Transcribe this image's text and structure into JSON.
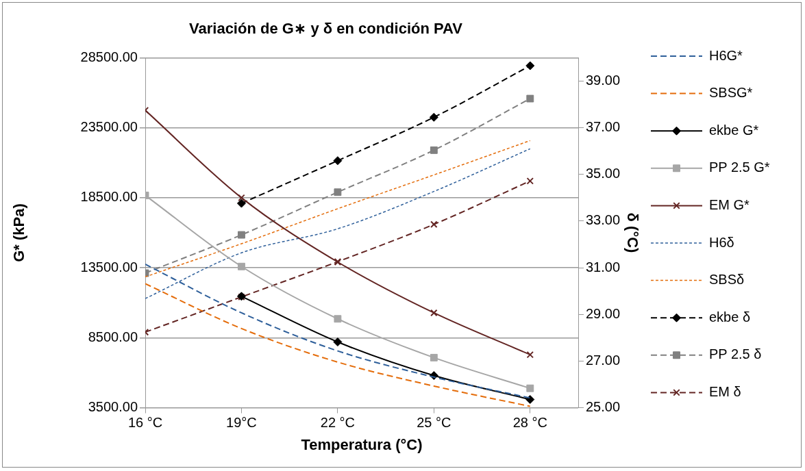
{
  "chart_data": {
    "type": "line",
    "title": "Variación de G∗ y δ en condición PAV",
    "xlabel": "Temperatura (°C)",
    "ylabel": "G* (kPa)",
    "y2label": "δ (°C)",
    "categories": [
      "16 °C",
      "19°C",
      "22 °C",
      "25 °C",
      "28 °C"
    ],
    "ylim": [
      3500,
      28500
    ],
    "yticks": [
      {
        "value": 3500,
        "label": "3500.00"
      },
      {
        "value": 8500,
        "label": "8500.00"
      },
      {
        "value": 13500,
        "label": "13500.00"
      },
      {
        "value": 18500,
        "label": "18500.00"
      },
      {
        "value": 23500,
        "label": "23500.00"
      },
      {
        "value": 28500,
        "label": "28500.00"
      }
    ],
    "y2lim": [
      25,
      40
    ],
    "y2ticks": [
      {
        "value": 25,
        "label": "25.00"
      },
      {
        "value": 27,
        "label": "27.00"
      },
      {
        "value": 29,
        "label": "29.00"
      },
      {
        "value": 31,
        "label": "31.00"
      },
      {
        "value": 33,
        "label": "33.00"
      },
      {
        "value": 35,
        "label": "35.00"
      },
      {
        "value": 37,
        "label": "37.00"
      },
      {
        "value": 39,
        "label": "39.00"
      }
    ],
    "grid": "y",
    "legend": "right",
    "series": [
      {
        "name": "H6G*",
        "color": "#2e5f9a",
        "line_style": "dashed",
        "marker": "none",
        "values": [
          13750,
          10280,
          7560,
          5690,
          4200
        ]
      },
      {
        "name": "SBSG*",
        "color": "#e46c0a",
        "line_style": "dashed",
        "marker": "none",
        "values": [
          12360,
          9160,
          6760,
          5050,
          3600
        ]
      },
      {
        "name": "ekbe G*",
        "color": "#000000",
        "line_style": "solid",
        "marker": "diamond",
        "values": [
          null,
          11460,
          8200,
          5800,
          4090
        ]
      },
      {
        "name": "PP 2.5 G*",
        "color": "#a6a6a6",
        "line_style": "solid",
        "marker": "square",
        "values": [
          18670,
          13590,
          9850,
          7080,
          4890
        ]
      },
      {
        "name": "EM G*",
        "color": "#632523",
        "line_style": "solid",
        "marker": "cross",
        "values": [
          24750,
          18500,
          13910,
          10280,
          7290
        ]
      },
      {
        "name": "H6δ",
        "color": "#2e5f9a",
        "line_style": "dotted",
        "marker": "none",
        "axis": "y2",
        "values": [
          29.68,
          31.64,
          32.67,
          34.27,
          36.1
        ]
      },
      {
        "name": "SBSδ",
        "color": "#e46c0a",
        "line_style": "dotted",
        "marker": "none",
        "axis": "y2",
        "values": [
          30.61,
          32.03,
          33.53,
          34.98,
          36.45
        ]
      },
      {
        "name": "ekbe δ",
        "color": "#000000",
        "line_style": "dashed",
        "marker": "diamond",
        "axis": "y2",
        "values": [
          null,
          33.76,
          35.59,
          37.45,
          39.66
        ]
      },
      {
        "name": "PP 2.5 δ",
        "color": "#808080",
        "line_style": "dashed",
        "marker": "square",
        "axis": "y2",
        "values": [
          30.77,
          32.41,
          34.24,
          36.04,
          38.25
        ]
      },
      {
        "name": "EM δ",
        "color": "#632523",
        "line_style": "dashed",
        "marker": "cross",
        "axis": "y2",
        "values": [
          28.24,
          29.75,
          31.26,
          32.86,
          34.72
        ]
      }
    ]
  }
}
